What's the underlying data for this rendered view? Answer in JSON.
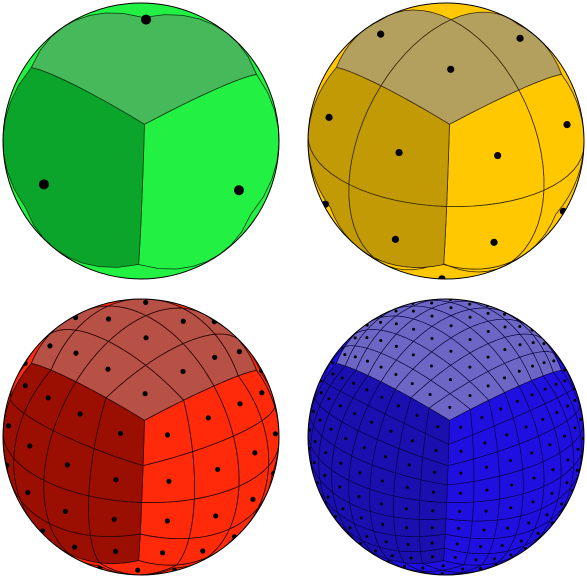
{
  "spheres": [
    {
      "id": "green",
      "level": 1,
      "colors": {
        "base": "#22f043",
        "shade_top": "#46b95a",
        "shade_left": "#0aa52a",
        "line": "#0a3a12"
      }
    },
    {
      "id": "yellow",
      "level": 2,
      "colors": {
        "base": "#ffc800",
        "shade_top": "#b3a05f",
        "shade_left": "#c29a06",
        "line": "#3a2a00"
      }
    },
    {
      "id": "red",
      "level": 4,
      "colors": {
        "base": "#ff2a0a",
        "shade_top": "#b75045",
        "shade_left": "#9a0f02",
        "line": "#2a0500"
      }
    },
    {
      "id": "blue",
      "level": 8,
      "colors": {
        "base": "#2010e0",
        "shade_top": "#6e66c4",
        "shade_left": "#1b0fb0",
        "line": "#05033a"
      }
    }
  ]
}
